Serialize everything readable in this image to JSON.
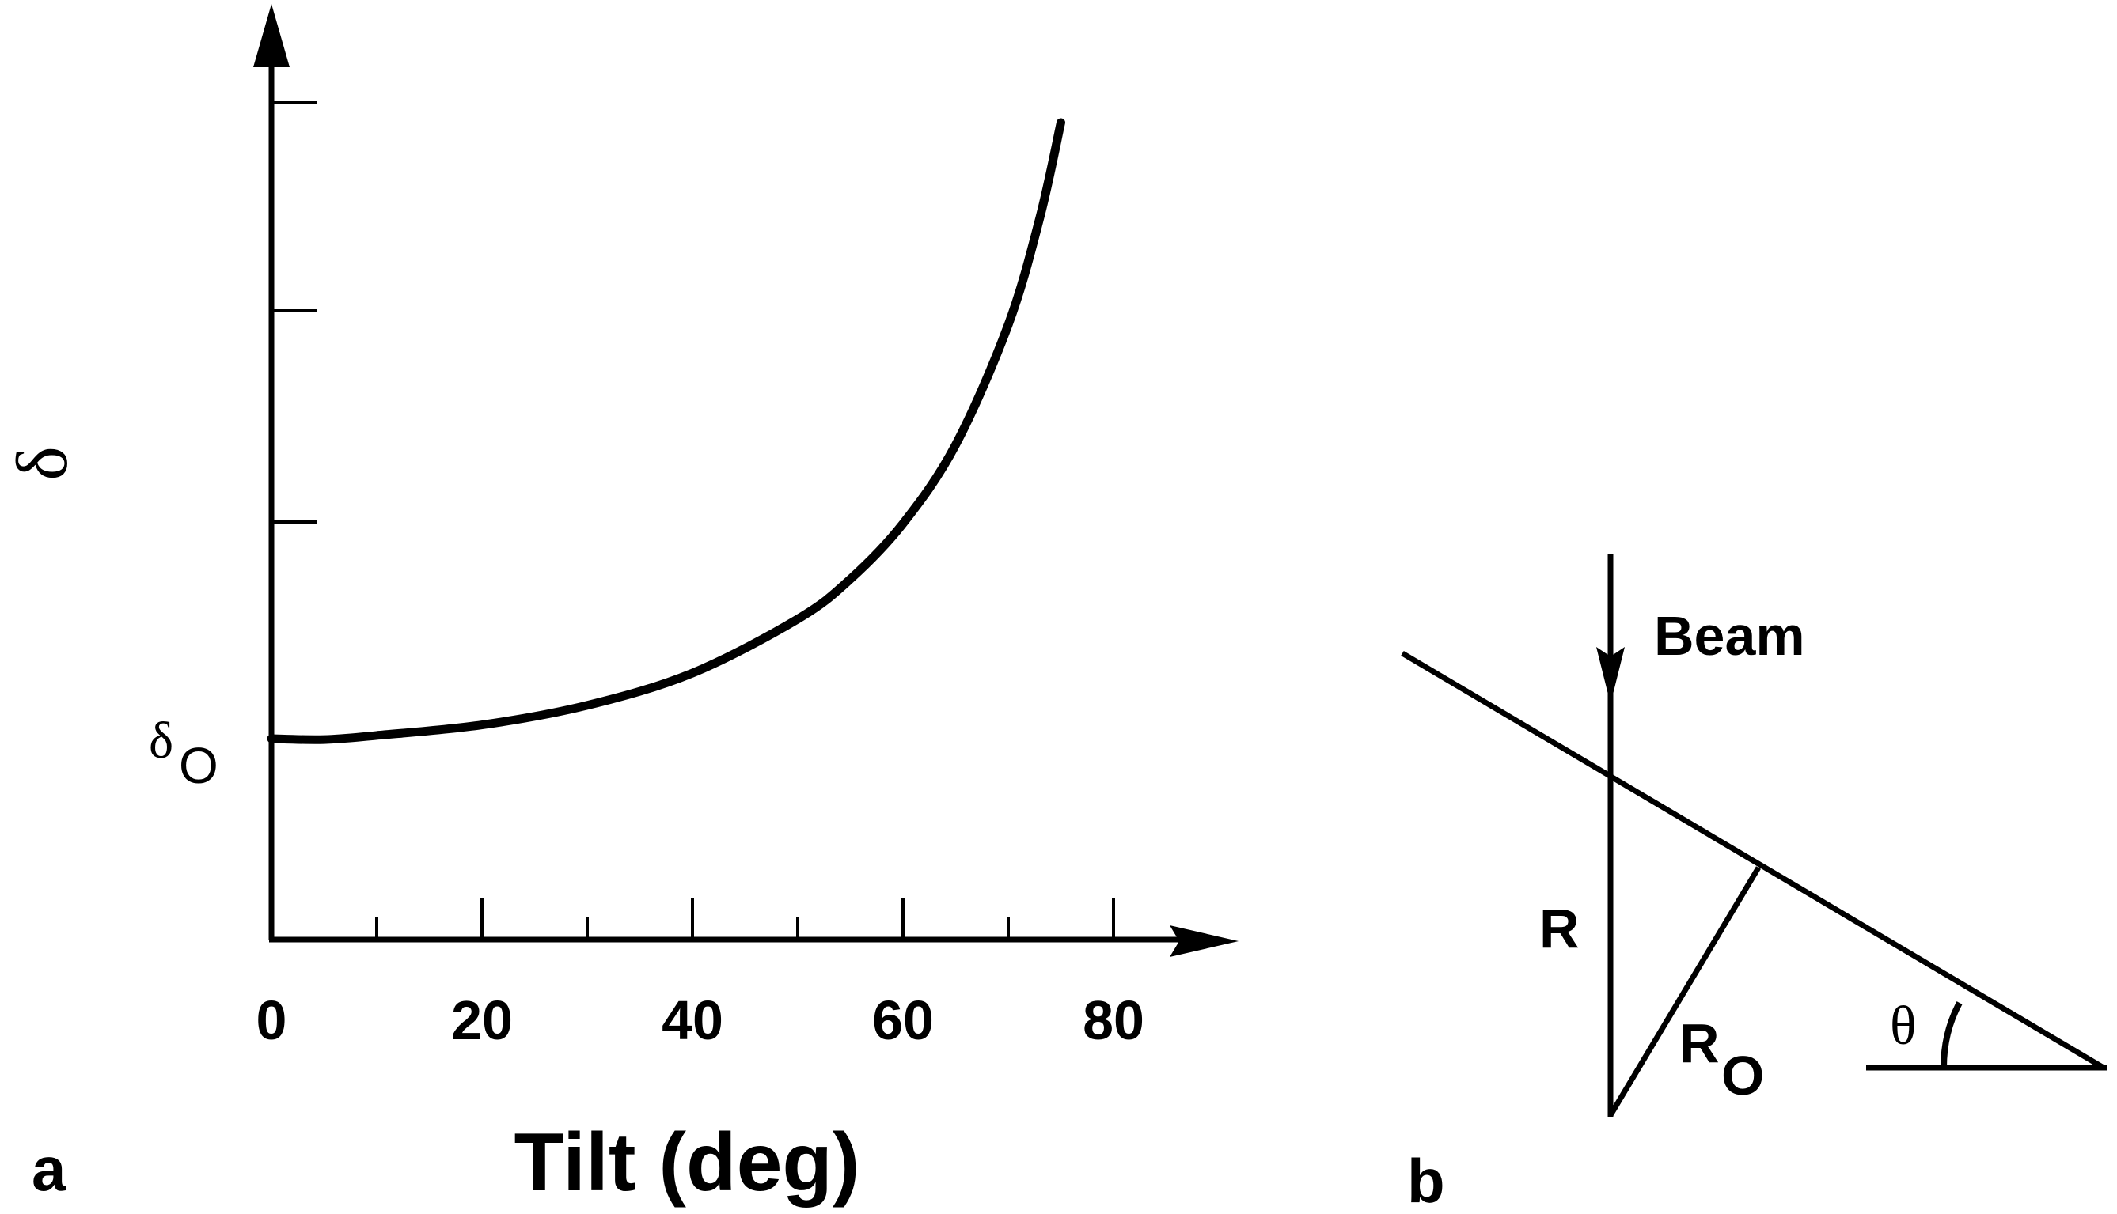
{
  "chart_data": {
    "type": "line",
    "xlabel": "Tilt (deg)",
    "ylabel": "δ",
    "x_ticks": [
      0,
      20,
      40,
      60,
      80
    ],
    "x_minor_ticks": [
      10,
      30,
      50,
      70
    ],
    "xlim": [
      0,
      90
    ],
    "y_reference_label": {
      "base": "δ",
      "subscript": "O"
    },
    "y_baseline_value": 1.0,
    "y_major_tick_count": 3,
    "series": [
      {
        "x": [
          0,
          5,
          10,
          20,
          30,
          40,
          50,
          55,
          60,
          65,
          70,
          73,
          75
        ],
        "y": [
          1.0,
          0.996,
          1.015,
          1.064,
          1.155,
          1.305,
          1.556,
          1.742,
          2.0,
          2.366,
          2.924,
          3.422,
          3.864
        ]
      }
    ],
    "grid": false
  },
  "panels": {
    "a_label": "a",
    "b_label": "b"
  },
  "geometry_diagram": {
    "beam_label": "Beam",
    "r_label": "R",
    "r0_label": {
      "base": "R",
      "subscript": "O"
    },
    "theta_label": "θ"
  }
}
